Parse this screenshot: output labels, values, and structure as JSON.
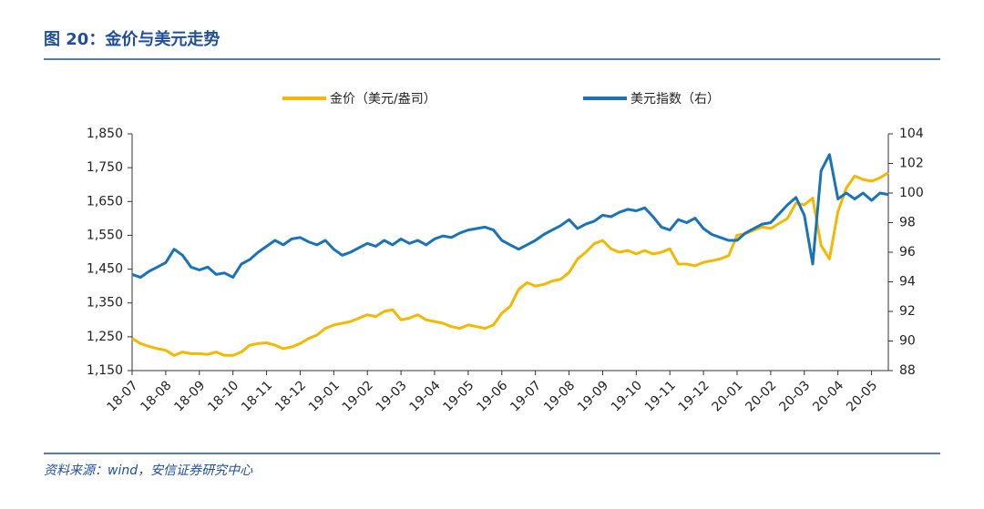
{
  "chart_data": {
    "type": "line",
    "title": "图 20：金价与美元走势",
    "source": "资料来源：wind，安信证券研究中心",
    "categories": [
      "18-07",
      null,
      null,
      null,
      "18-08",
      null,
      null,
      null,
      "18-09",
      null,
      null,
      null,
      "18-10",
      null,
      null,
      null,
      "18-11",
      null,
      null,
      null,
      "18-12",
      null,
      null,
      null,
      "19-01",
      null,
      null,
      null,
      "19-02",
      null,
      null,
      null,
      "19-03",
      null,
      null,
      null,
      "19-04",
      null,
      null,
      null,
      "19-05",
      null,
      null,
      null,
      "19-06",
      null,
      null,
      null,
      "19-07",
      null,
      null,
      null,
      "19-08",
      null,
      null,
      null,
      "19-09",
      null,
      null,
      null,
      "19-10",
      null,
      null,
      null,
      "19-11",
      null,
      null,
      null,
      "19-12",
      null,
      null,
      null,
      "20-01",
      null,
      null,
      null,
      "20-02",
      null,
      null,
      null,
      "20-03",
      null,
      null,
      null,
      "20-04",
      null,
      null,
      null,
      "20-05",
      null,
      null
    ],
    "series": [
      {
        "name": "金价（美元/盎司）",
        "color": "#f5b800",
        "values": [
          1245,
          1230,
          1222,
          1215,
          1210,
          1195,
          1205,
          1200,
          1200,
          1198,
          1205,
          1195,
          1195,
          1205,
          1225,
          1230,
          1232,
          1225,
          1215,
          1220,
          1230,
          1245,
          1255,
          1275,
          1285,
          1290,
          1295,
          1305,
          1315,
          1310,
          1325,
          1330,
          1300,
          1305,
          1315,
          1300,
          1295,
          1290,
          1280,
          1275,
          1285,
          1280,
          1275,
          1285,
          1320,
          1340,
          1390,
          1410,
          1400,
          1405,
          1415,
          1420,
          1440,
          1480,
          1500,
          1525,
          1535,
          1510,
          1500,
          1505,
          1495,
          1505,
          1495,
          1500,
          1510,
          1465,
          1465,
          1460,
          1470,
          1475,
          1480,
          1490,
          1550,
          1555,
          1565,
          1575,
          1570,
          1585,
          1600,
          1645,
          1640,
          1660,
          1520,
          1480,
          1620,
          1690,
          1725,
          1715,
          1710,
          1720,
          1735
        ]
      },
      {
        "name": "美元指数（右）",
        "color": "#1a72b8",
        "axis": "y2",
        "values": [
          94.5,
          94.3,
          94.7,
          95.0,
          95.3,
          96.2,
          95.8,
          95.0,
          94.8,
          95.0,
          94.5,
          94.6,
          94.3,
          95.2,
          95.5,
          96.0,
          96.4,
          96.8,
          96.5,
          96.9,
          97.0,
          96.7,
          96.5,
          96.8,
          96.2,
          95.8,
          96.0,
          96.3,
          96.6,
          96.4,
          96.8,
          96.5,
          96.9,
          96.6,
          96.8,
          96.5,
          96.9,
          97.1,
          97.0,
          97.3,
          97.5,
          97.6,
          97.7,
          97.5,
          96.8,
          96.5,
          96.2,
          96.5,
          96.8,
          97.2,
          97.5,
          97.8,
          98.2,
          97.6,
          97.9,
          98.1,
          98.5,
          98.4,
          98.7,
          98.9,
          98.8,
          99.0,
          98.4,
          97.7,
          97.5,
          98.2,
          98.0,
          98.3,
          97.6,
          97.2,
          97.0,
          96.8,
          96.8,
          97.3,
          97.6,
          97.9,
          98.0,
          98.6,
          99.2,
          99.7,
          98.5,
          95.2,
          101.5,
          102.6,
          99.6,
          100.0,
          99.6,
          100.0,
          99.5,
          100.0,
          99.9
        ]
      }
    ],
    "ylim": [
      1150,
      1850
    ],
    "yticks": [
      {
        "value": 1150,
        "label": "1,150"
      },
      {
        "value": 1250,
        "label": "1,250"
      },
      {
        "value": 1350,
        "label": "1,350"
      },
      {
        "value": 1450,
        "label": "1,450"
      },
      {
        "value": 1550,
        "label": "1,550"
      },
      {
        "value": 1650,
        "label": "1,650"
      },
      {
        "value": 1750,
        "label": "1,750"
      },
      {
        "value": 1850,
        "label": "1,850"
      }
    ],
    "y2lim": [
      88,
      104
    ],
    "y2ticks": [
      88,
      90,
      92,
      94,
      96,
      98,
      100,
      102,
      104
    ],
    "grid": false
  }
}
